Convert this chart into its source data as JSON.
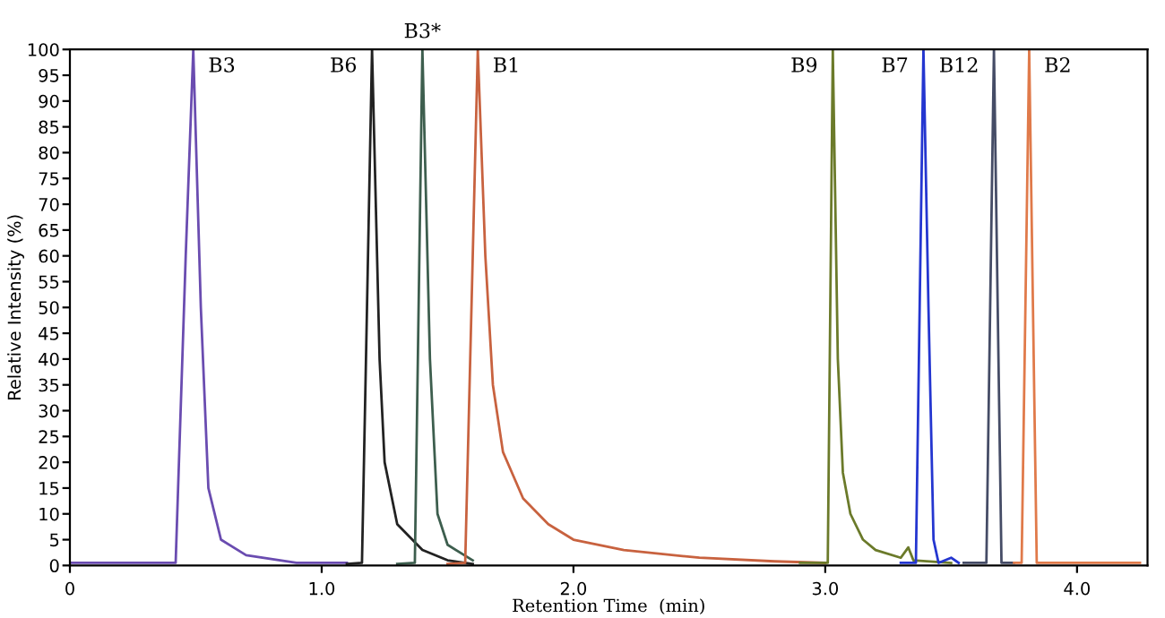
{
  "chart_data": {
    "type": "line",
    "xlabel": "Retention Time  (min)",
    "ylabel": "Relative Intensity (%)",
    "xlim": [
      0,
      4.28
    ],
    "ylim": [
      0,
      100
    ],
    "xticks": [
      0,
      {
        "value": 1,
        "label": "1.0"
      },
      {
        "value": 2,
        "label": "2.0"
      },
      {
        "value": 3,
        "label": "3.0"
      },
      {
        "value": 4,
        "label": "4.0"
      }
    ],
    "yticks": [
      0,
      5,
      10,
      15,
      20,
      25,
      30,
      35,
      40,
      45,
      50,
      55,
      60,
      65,
      70,
      75,
      80,
      85,
      90,
      95,
      100
    ],
    "grid": false,
    "legend": false,
    "marker": "none",
    "line_style": "solid",
    "series": [
      {
        "color": "#6a4cb0",
        "x": [
          0,
          0.3,
          0.42,
          0.46,
          0.49,
          0.52,
          0.55,
          0.6,
          0.7,
          0.9,
          1.1
        ],
        "values": [
          0.5,
          0.5,
          0.5,
          60,
          100,
          50,
          15,
          5,
          2,
          0.5,
          0.5
        ]
      },
      {
        "color": "#222222",
        "x": [
          1.1,
          1.16,
          1.18,
          1.2,
          1.23,
          1.25,
          1.3,
          1.4,
          1.5,
          1.6
        ],
        "values": [
          0.3,
          0.5,
          50,
          100,
          40,
          20,
          8,
          3,
          1,
          0.3
        ]
      },
      {
        "color": "#3d5e4e",
        "x": [
          1.3,
          1.37,
          1.385,
          1.4,
          1.43,
          1.46,
          1.5,
          1.6
        ],
        "values": [
          0.3,
          0.5,
          50,
          100,
          40,
          10,
          4,
          1
        ]
      },
      {
        "color": "#c8623f",
        "x": [
          1.5,
          1.57,
          1.6,
          1.62,
          1.65,
          1.68,
          1.72,
          1.8,
          1.9,
          2.0,
          2.2,
          2.5,
          2.8,
          3.0
        ],
        "values": [
          0.3,
          0.5,
          60,
          100,
          60,
          35,
          22,
          13,
          8,
          5,
          3,
          1.5,
          0.8,
          0.5
        ]
      },
      {
        "color": "#6b7a2a",
        "x": [
          2.9,
          3.01,
          3.02,
          3.03,
          3.05,
          3.07,
          3.1,
          3.15,
          3.2,
          3.3,
          3.33,
          3.35,
          3.5
        ],
        "values": [
          0.5,
          0.5,
          50,
          100,
          40,
          18,
          10,
          5,
          3,
          1.5,
          3.5,
          1,
          0.5
        ]
      },
      {
        "color": "#2436d0",
        "x": [
          3.3,
          3.36,
          3.375,
          3.39,
          3.41,
          3.43,
          3.45,
          3.5,
          3.53
        ],
        "values": [
          0.5,
          0.5,
          50,
          100,
          50,
          5,
          0.5,
          1.5,
          0.5
        ]
      },
      {
        "color": "#454c66",
        "x": [
          3.55,
          3.64,
          3.655,
          3.67,
          3.685,
          3.7,
          3.75
        ],
        "values": [
          0.5,
          0.5,
          50,
          100,
          50,
          0.5,
          0.5
        ]
      },
      {
        "color": "#e07a4a",
        "x": [
          3.75,
          3.78,
          3.795,
          3.81,
          3.825,
          3.84,
          4.25
        ],
        "values": [
          0.5,
          0.5,
          50,
          100,
          50,
          0.5,
          0.5
        ]
      }
    ],
    "annotations": [
      {
        "text": "B3",
        "x": 0.49,
        "y": 100
      },
      {
        "text": "B6",
        "x": 1.2,
        "y": 100
      },
      {
        "text": "B3*",
        "x": 1.4,
        "y": 100
      },
      {
        "text": "B1",
        "x": 1.62,
        "y": 100
      },
      {
        "text": "B9",
        "x": 3.03,
        "y": 100
      },
      {
        "text": "B7",
        "x": 3.39,
        "y": 100
      },
      {
        "text": "B12",
        "x": 3.67,
        "y": 100
      },
      {
        "text": "B2",
        "x": 3.81,
        "y": 100
      }
    ]
  }
}
